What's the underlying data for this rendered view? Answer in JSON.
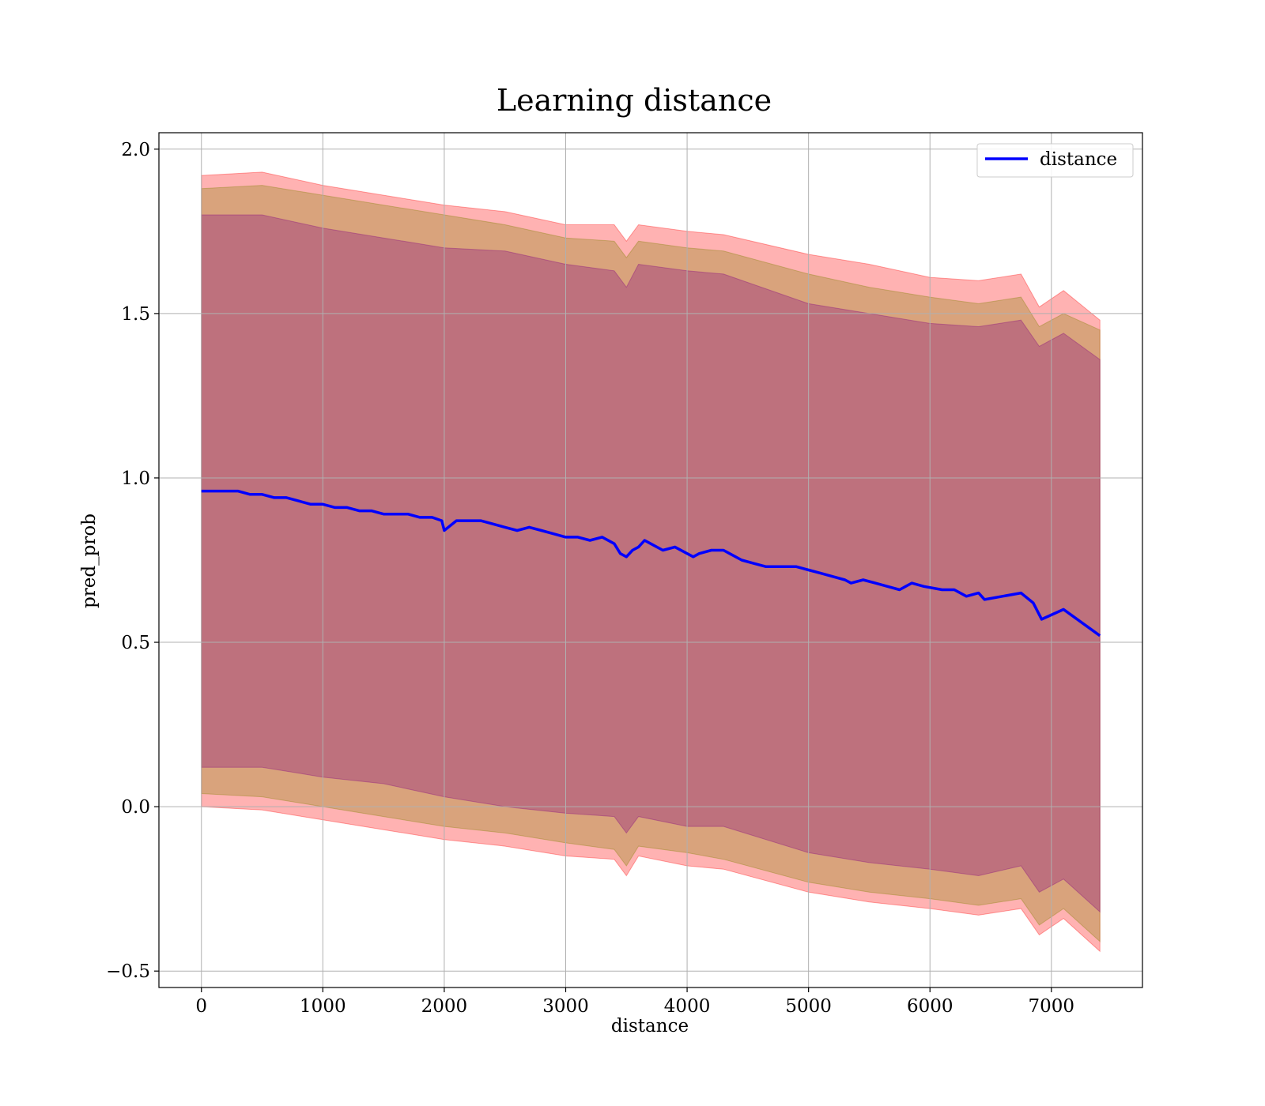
{
  "chart_data": {
    "type": "line",
    "title": "Learning distance",
    "xlabel": "distance",
    "ylabel": "pred_prob",
    "xlim": [
      -350,
      7750
    ],
    "ylim": [
      -0.55,
      2.05
    ],
    "xticks": [
      0,
      1000,
      2000,
      3000,
      4000,
      5000,
      6000,
      7000
    ],
    "yticks": [
      -0.5,
      0.0,
      0.5,
      1.0,
      1.5,
      2.0
    ],
    "xtick_labels": [
      "0",
      "1000",
      "2000",
      "3000",
      "4000",
      "5000",
      "6000",
      "7000"
    ],
    "ytick_labels": [
      "−0.5",
      "0.0",
      "0.5",
      "1.0",
      "1.5",
      "2.0"
    ],
    "grid": true,
    "legend": {
      "placement": "top-right",
      "entries": [
        "distance"
      ]
    },
    "colors": {
      "line": "#0000ff",
      "band_outer": "#ff0000",
      "band_middle": "#808000",
      "band_inner": "#800080"
    },
    "series": [
      {
        "name": "distance",
        "x": [
          0,
          100,
          200,
          300,
          400,
          500,
          600,
          700,
          800,
          900,
          1000,
          1100,
          1200,
          1300,
          1400,
          1500,
          1600,
          1700,
          1800,
          1900,
          1980,
          2000,
          2100,
          2200,
          2300,
          2400,
          2500,
          2600,
          2700,
          2800,
          2900,
          3000,
          3100,
          3200,
          3300,
          3400,
          3450,
          3500,
          3550,
          3600,
          3650,
          3700,
          3800,
          3900,
          4000,
          4050,
          4100,
          4200,
          4300,
          4350,
          4450,
          4550,
          4650,
          4750,
          4900,
          5000,
          5100,
          5200,
          5300,
          5350,
          5450,
          5550,
          5650,
          5750,
          5850,
          5950,
          6100,
          6200,
          6300,
          6400,
          6450,
          6750,
          6850,
          6920,
          7100,
          7400
        ],
        "y": [
          0.96,
          0.96,
          0.96,
          0.96,
          0.95,
          0.95,
          0.94,
          0.94,
          0.93,
          0.92,
          0.92,
          0.91,
          0.91,
          0.9,
          0.9,
          0.89,
          0.89,
          0.89,
          0.88,
          0.88,
          0.87,
          0.84,
          0.87,
          0.87,
          0.87,
          0.86,
          0.85,
          0.84,
          0.85,
          0.84,
          0.83,
          0.82,
          0.82,
          0.81,
          0.82,
          0.8,
          0.77,
          0.76,
          0.78,
          0.79,
          0.81,
          0.8,
          0.78,
          0.79,
          0.77,
          0.76,
          0.77,
          0.78,
          0.78,
          0.77,
          0.75,
          0.74,
          0.73,
          0.73,
          0.73,
          0.72,
          0.71,
          0.7,
          0.69,
          0.68,
          0.69,
          0.68,
          0.67,
          0.66,
          0.68,
          0.67,
          0.66,
          0.66,
          0.64,
          0.65,
          0.63,
          0.65,
          0.62,
          0.57,
          0.6,
          0.52
        ]
      }
    ],
    "bands": {
      "x": [
        0,
        500,
        1000,
        1500,
        2000,
        2500,
        3000,
        3400,
        3500,
        3600,
        4000,
        4300,
        5000,
        5500,
        6000,
        6400,
        6750,
        6900,
        7100,
        7400
      ],
      "upper_outer": [
        1.92,
        1.93,
        1.89,
        1.86,
        1.83,
        1.81,
        1.77,
        1.77,
        1.72,
        1.77,
        1.75,
        1.74,
        1.68,
        1.65,
        1.61,
        1.6,
        1.62,
        1.52,
        1.57,
        1.48
      ],
      "upper_middle": [
        1.88,
        1.89,
        1.86,
        1.83,
        1.8,
        1.77,
        1.73,
        1.72,
        1.67,
        1.72,
        1.7,
        1.69,
        1.62,
        1.58,
        1.55,
        1.53,
        1.55,
        1.46,
        1.5,
        1.45
      ],
      "upper_inner": [
        1.8,
        1.8,
        1.76,
        1.73,
        1.7,
        1.69,
        1.65,
        1.63,
        1.58,
        1.65,
        1.63,
        1.62,
        1.53,
        1.5,
        1.47,
        1.46,
        1.48,
        1.4,
        1.44,
        1.36
      ],
      "lower_inner": [
        0.12,
        0.12,
        0.09,
        0.07,
        0.03,
        0.0,
        -0.02,
        -0.03,
        -0.08,
        -0.03,
        -0.06,
        -0.06,
        -0.14,
        -0.17,
        -0.19,
        -0.21,
        -0.18,
        -0.26,
        -0.22,
        -0.32
      ],
      "lower_middle": [
        0.04,
        0.03,
        0.0,
        -0.03,
        -0.06,
        -0.08,
        -0.11,
        -0.13,
        -0.18,
        -0.12,
        -0.14,
        -0.16,
        -0.23,
        -0.26,
        -0.28,
        -0.3,
        -0.28,
        -0.36,
        -0.31,
        -0.41
      ],
      "lower_outer": [
        0.0,
        -0.01,
        -0.04,
        -0.07,
        -0.1,
        -0.12,
        -0.15,
        -0.16,
        -0.21,
        -0.15,
        -0.18,
        -0.19,
        -0.26,
        -0.29,
        -0.31,
        -0.33,
        -0.31,
        -0.39,
        -0.34,
        -0.44
      ]
    }
  }
}
